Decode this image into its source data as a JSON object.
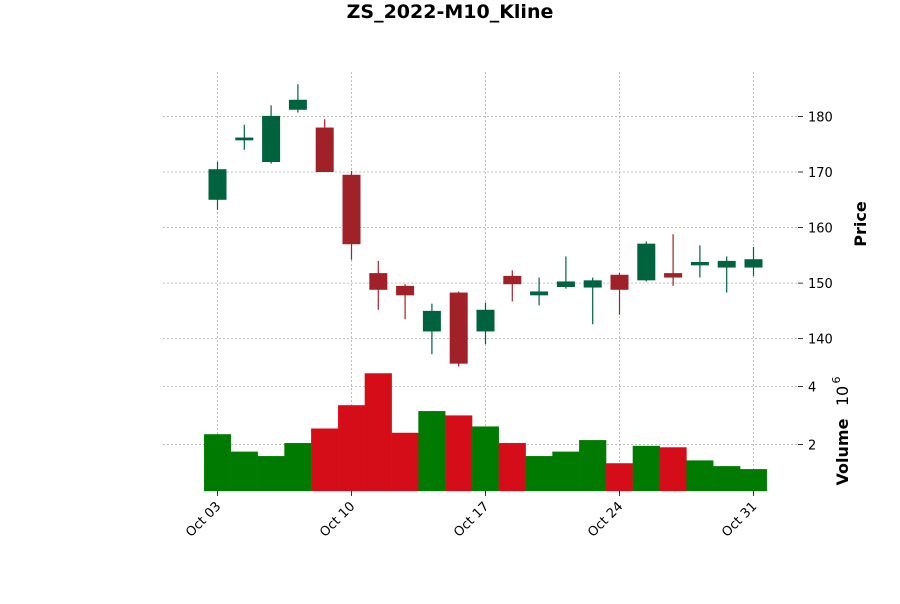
{
  "chart_data": {
    "type": "candlestick",
    "title": "ZS_2022-M10_Kline",
    "price_axis": {
      "label": "Price",
      "ylim": [
        134,
        188
      ],
      "ticks": [
        140,
        150,
        160,
        170,
        180
      ],
      "position": "right"
    },
    "volume_axis": {
      "label": "Volume",
      "exponent_label": "10",
      "exponent_power": "6",
      "ylim": [
        0.4,
        4.5
      ],
      "ticks": [
        2,
        4
      ],
      "position": "right"
    },
    "x_ticks": [
      {
        "label": "Oct 03",
        "index": 0
      },
      {
        "label": "Oct 10",
        "index": 5
      },
      {
        "label": "Oct 17",
        "index": 10
      },
      {
        "label": "Oct 24",
        "index": 15
      },
      {
        "label": "Oct 31",
        "index": 20
      }
    ],
    "grid": true,
    "colors": {
      "up": "#006340",
      "down": "#a02128",
      "volume_up": "#007a00",
      "volume_down": "#d50d18"
    },
    "candles": [
      {
        "date": "2022-10-03",
        "open": 165.0,
        "high": 171.8,
        "low": 163.2,
        "close": 170.5,
        "volume": 2.35
      },
      {
        "date": "2022-10-04",
        "open": 175.7,
        "high": 178.5,
        "low": 174.0,
        "close": 176.2,
        "volume": 1.75
      },
      {
        "date": "2022-10-05",
        "open": 171.8,
        "high": 182.0,
        "low": 171.5,
        "close": 180.1,
        "volume": 1.6
      },
      {
        "date": "2022-10-06",
        "open": 181.2,
        "high": 185.8,
        "low": 180.7,
        "close": 183.0,
        "volume": 2.05
      },
      {
        "date": "2022-10-07",
        "open": 178.0,
        "high": 179.5,
        "low": 170.0,
        "close": 170.0,
        "volume": 2.55
      },
      {
        "date": "2022-10-10",
        "open": 169.5,
        "high": 170.2,
        "low": 154.2,
        "close": 157.0,
        "volume": 3.35
      },
      {
        "date": "2022-10-11",
        "open": 151.8,
        "high": 154.0,
        "low": 145.2,
        "close": 148.8,
        "volume": 4.45
      },
      {
        "date": "2022-10-12",
        "open": 149.5,
        "high": 149.8,
        "low": 143.5,
        "close": 147.8,
        "volume": 2.4
      },
      {
        "date": "2022-10-13",
        "open": 141.3,
        "high": 146.3,
        "low": 137.2,
        "close": 145.0,
        "volume": 3.15
      },
      {
        "date": "2022-10-14",
        "open": 148.3,
        "high": 148.5,
        "low": 135.0,
        "close": 135.5,
        "volume": 3.0
      },
      {
        "date": "2022-10-17",
        "open": 141.3,
        "high": 146.5,
        "low": 139.0,
        "close": 145.2,
        "volume": 2.62
      },
      {
        "date": "2022-10-18",
        "open": 151.3,
        "high": 152.3,
        "low": 146.7,
        "close": 149.8,
        "volume": 2.05
      },
      {
        "date": "2022-10-19",
        "open": 147.8,
        "high": 151.0,
        "low": 146.0,
        "close": 148.5,
        "volume": 1.6
      },
      {
        "date": "2022-10-20",
        "open": 149.3,
        "high": 154.8,
        "low": 149.0,
        "close": 150.3,
        "volume": 1.75
      },
      {
        "date": "2022-10-21",
        "open": 149.2,
        "high": 151.0,
        "low": 142.6,
        "close": 150.5,
        "volume": 2.15
      },
      {
        "date": "2022-10-24",
        "open": 151.5,
        "high": 151.8,
        "low": 144.3,
        "close": 148.8,
        "volume": 1.35
      },
      {
        "date": "2022-10-25",
        "open": 150.5,
        "high": 157.5,
        "low": 150.3,
        "close": 157.1,
        "volume": 1.95
      },
      {
        "date": "2022-10-26",
        "open": 151.8,
        "high": 158.8,
        "low": 149.5,
        "close": 151.0,
        "volume": 1.9
      },
      {
        "date": "2022-10-27",
        "open": 153.2,
        "high": 156.8,
        "low": 151.0,
        "close": 153.8,
        "volume": 1.45
      },
      {
        "date": "2022-10-28",
        "open": 152.8,
        "high": 154.8,
        "low": 148.3,
        "close": 154.0,
        "volume": 1.25
      },
      {
        "date": "2022-10-31",
        "open": 152.8,
        "high": 156.5,
        "low": 151.3,
        "close": 154.3,
        "volume": 1.15
      }
    ]
  }
}
